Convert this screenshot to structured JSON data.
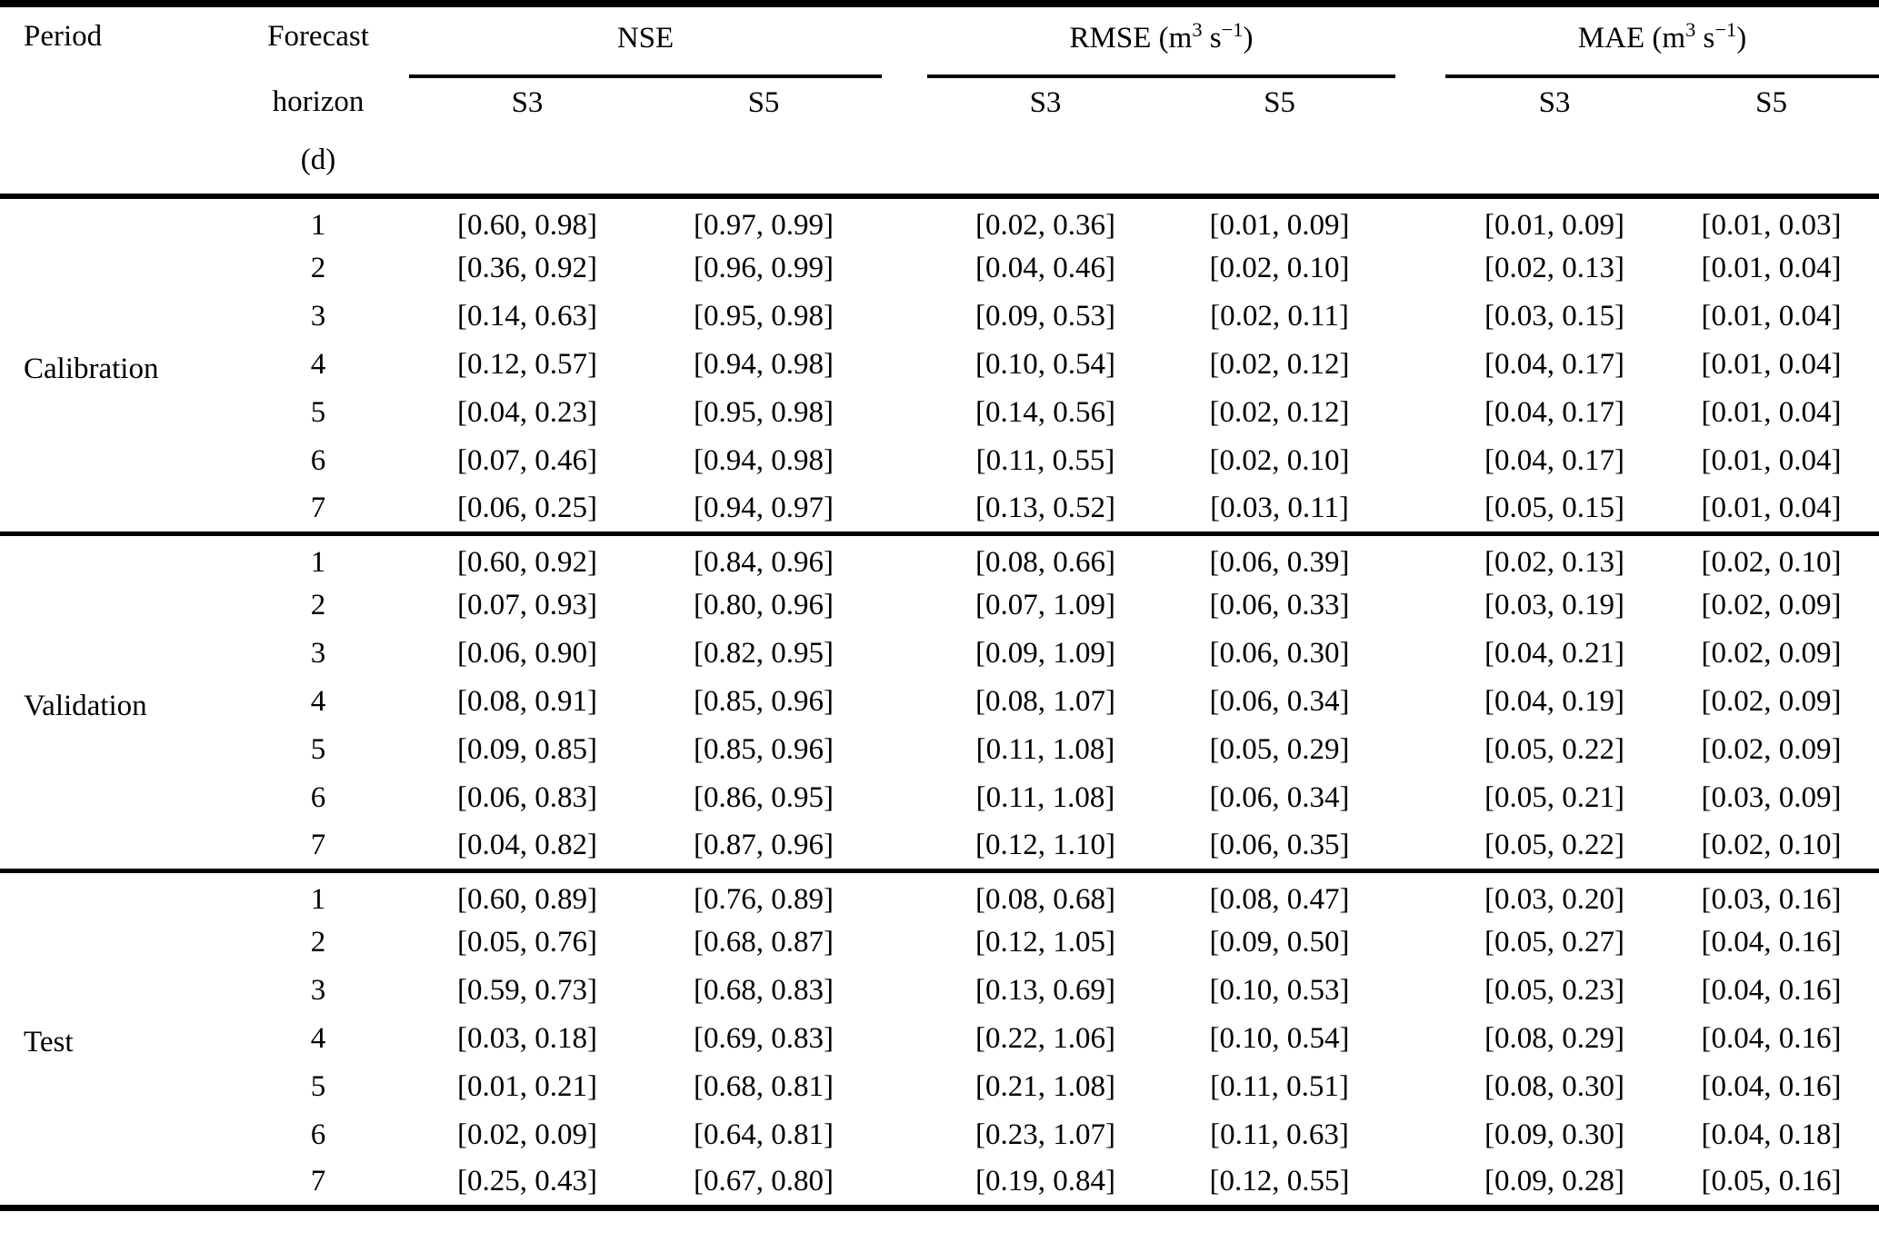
{
  "table": {
    "header": {
      "period": "Period",
      "forecast_lines": [
        "Forecast",
        "horizon",
        "(d)"
      ],
      "groups": [
        {
          "name": "NSE",
          "unit": null
        },
        {
          "name": "RMSE",
          "unit": {
            "open": " (m",
            "sup1": "3",
            "mid": " s",
            "sup2": "−1",
            "close": ")"
          }
        },
        {
          "name": "MAE",
          "unit": {
            "open": " (m",
            "sup1": "3",
            "mid": " s",
            "sup2": "−1",
            "close": ")"
          }
        }
      ],
      "sub_s3": "S3",
      "sub_s5": "S5"
    },
    "periods": [
      {
        "label": "Calibration",
        "rows": [
          {
            "horizon": "1",
            "nse_s3": "[0.60, 0.98]",
            "nse_s5": "[0.97, 0.99]",
            "rmse_s3": "[0.02, 0.36]",
            "rmse_s5": "[0.01, 0.09]",
            "mae_s3": "[0.01, 0.09]",
            "mae_s5": "[0.01, 0.03]"
          },
          {
            "horizon": "2",
            "nse_s3": "[0.36, 0.92]",
            "nse_s5": "[0.96, 0.99]",
            "rmse_s3": "[0.04, 0.46]",
            "rmse_s5": "[0.02, 0.10]",
            "mae_s3": "[0.02, 0.13]",
            "mae_s5": "[0.01, 0.04]"
          },
          {
            "horizon": "3",
            "nse_s3": "[0.14, 0.63]",
            "nse_s5": "[0.95, 0.98]",
            "rmse_s3": "[0.09, 0.53]",
            "rmse_s5": "[0.02, 0.11]",
            "mae_s3": "[0.03, 0.15]",
            "mae_s5": "[0.01, 0.04]"
          },
          {
            "horizon": "4",
            "nse_s3": "[0.12, 0.57]",
            "nse_s5": "[0.94, 0.98]",
            "rmse_s3": "[0.10, 0.54]",
            "rmse_s5": "[0.02, 0.12]",
            "mae_s3": "[0.04, 0.17]",
            "mae_s5": "[0.01, 0.04]"
          },
          {
            "horizon": "5",
            "nse_s3": "[0.04, 0.23]",
            "nse_s5": "[0.95, 0.98]",
            "rmse_s3": "[0.14, 0.56]",
            "rmse_s5": "[0.02, 0.12]",
            "mae_s3": "[0.04, 0.17]",
            "mae_s5": "[0.01, 0.04]"
          },
          {
            "horizon": "6",
            "nse_s3": "[0.07, 0.46]",
            "nse_s5": "[0.94, 0.98]",
            "rmse_s3": "[0.11, 0.55]",
            "rmse_s5": "[0.02, 0.10]",
            "mae_s3": "[0.04, 0.17]",
            "mae_s5": "[0.01, 0.04]"
          },
          {
            "horizon": "7",
            "nse_s3": "[0.06, 0.25]",
            "nse_s5": "[0.94, 0.97]",
            "rmse_s3": "[0.13, 0.52]",
            "rmse_s5": "[0.03, 0.11]",
            "mae_s3": "[0.05, 0.15]",
            "mae_s5": "[0.01, 0.04]"
          }
        ]
      },
      {
        "label": "Validation",
        "rows": [
          {
            "horizon": "1",
            "nse_s3": "[0.60, 0.92]",
            "nse_s5": "[0.84, 0.96]",
            "rmse_s3": "[0.08, 0.66]",
            "rmse_s5": "[0.06, 0.39]",
            "mae_s3": "[0.02, 0.13]",
            "mae_s5": "[0.02, 0.10]"
          },
          {
            "horizon": "2",
            "nse_s3": "[0.07, 0.93]",
            "nse_s5": "[0.80, 0.96]",
            "rmse_s3": "[0.07, 1.09]",
            "rmse_s5": "[0.06, 0.33]",
            "mae_s3": "[0.03, 0.19]",
            "mae_s5": "[0.02, 0.09]"
          },
          {
            "horizon": "3",
            "nse_s3": "[0.06, 0.90]",
            "nse_s5": "[0.82, 0.95]",
            "rmse_s3": "[0.09, 1.09]",
            "rmse_s5": "[0.06, 0.30]",
            "mae_s3": "[0.04, 0.21]",
            "mae_s5": "[0.02, 0.09]"
          },
          {
            "horizon": "4",
            "nse_s3": "[0.08, 0.91]",
            "nse_s5": "[0.85, 0.96]",
            "rmse_s3": "[0.08, 1.07]",
            "rmse_s5": "[0.06, 0.34]",
            "mae_s3": "[0.04, 0.19]",
            "mae_s5": "[0.02, 0.09]"
          },
          {
            "horizon": "5",
            "nse_s3": "[0.09, 0.85]",
            "nse_s5": "[0.85, 0.96]",
            "rmse_s3": "[0.11, 1.08]",
            "rmse_s5": "[0.05, 0.29]",
            "mae_s3": "[0.05, 0.22]",
            "mae_s5": "[0.02, 0.09]"
          },
          {
            "horizon": "6",
            "nse_s3": "[0.06, 0.83]",
            "nse_s5": "[0.86, 0.95]",
            "rmse_s3": "[0.11, 1.08]",
            "rmse_s5": "[0.06, 0.34]",
            "mae_s3": "[0.05, 0.21]",
            "mae_s5": "[0.03, 0.09]"
          },
          {
            "horizon": "7",
            "nse_s3": "[0.04, 0.82]",
            "nse_s5": "[0.87, 0.96]",
            "rmse_s3": "[0.12, 1.10]",
            "rmse_s5": "[0.06, 0.35]",
            "mae_s3": "[0.05, 0.22]",
            "mae_s5": "[0.02, 0.10]"
          }
        ]
      },
      {
        "label": "Test",
        "rows": [
          {
            "horizon": "1",
            "nse_s3": "[0.60, 0.89]",
            "nse_s5": "[0.76, 0.89]",
            "rmse_s3": "[0.08, 0.68]",
            "rmse_s5": "[0.08, 0.47]",
            "mae_s3": "[0.03, 0.20]",
            "mae_s5": "[0.03, 0.16]"
          },
          {
            "horizon": "2",
            "nse_s3": "[0.05, 0.76]",
            "nse_s5": "[0.68, 0.87]",
            "rmse_s3": "[0.12, 1.05]",
            "rmse_s5": "[0.09, 0.50]",
            "mae_s3": "[0.05, 0.27]",
            "mae_s5": "[0.04, 0.16]"
          },
          {
            "horizon": "3",
            "nse_s3": "[0.59, 0.73]",
            "nse_s5": "[0.68, 0.83]",
            "rmse_s3": "[0.13, 0.69]",
            "rmse_s5": "[0.10, 0.53]",
            "mae_s3": "[0.05, 0.23]",
            "mae_s5": "[0.04, 0.16]"
          },
          {
            "horizon": "4",
            "nse_s3": "[0.03, 0.18]",
            "nse_s5": "[0.69, 0.83]",
            "rmse_s3": "[0.22, 1.06]",
            "rmse_s5": "[0.10, 0.54]",
            "mae_s3": "[0.08, 0.29]",
            "mae_s5": "[0.04, 0.16]"
          },
          {
            "horizon": "5",
            "nse_s3": "[0.01, 0.21]",
            "nse_s5": "[0.68, 0.81]",
            "rmse_s3": "[0.21, 1.08]",
            "rmse_s5": "[0.11, 0.51]",
            "mae_s3": "[0.08, 0.30]",
            "mae_s5": "[0.04, 0.16]"
          },
          {
            "horizon": "6",
            "nse_s3": "[0.02, 0.09]",
            "nse_s5": "[0.64, 0.81]",
            "rmse_s3": "[0.23, 1.07]",
            "rmse_s5": "[0.11, 0.63]",
            "mae_s3": "[0.09, 0.30]",
            "mae_s5": "[0.04, 0.18]"
          },
          {
            "horizon": "7",
            "nse_s3": "[0.25, 0.43]",
            "nse_s5": "[0.67, 0.80]",
            "rmse_s3": "[0.19, 0.84]",
            "rmse_s5": "[0.12, 0.55]",
            "mae_s3": "[0.09, 0.28]",
            "mae_s5": "[0.05, 0.16]"
          }
        ]
      }
    ]
  }
}
